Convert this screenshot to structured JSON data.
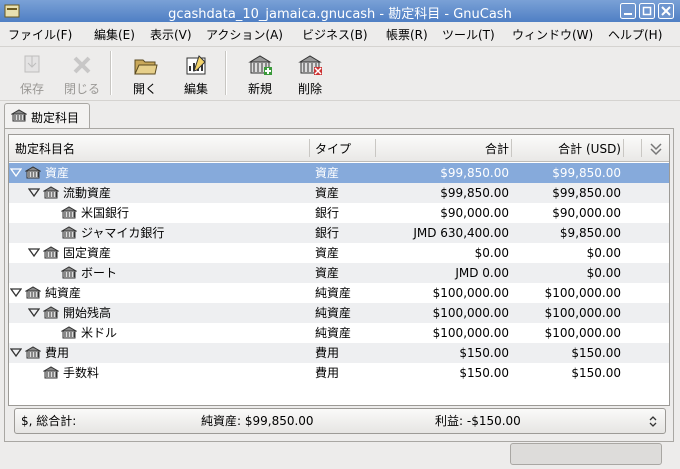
{
  "window": {
    "title": "gcashdata_10_jamaica.gnucash - 勘定科目 - GnuCash"
  },
  "menu": [
    "ファイル(F)",
    "編集(E)",
    "表示(V)",
    "アクション(A)",
    "ビジネス(B)",
    "帳票(R)",
    "ツール(T)",
    "ウィンドウ(W)",
    "ヘルプ(H)"
  ],
  "toolbar": [
    {
      "label": "保存",
      "enabled": false
    },
    {
      "label": "閉じる",
      "enabled": false
    },
    {
      "label": "開く",
      "enabled": true
    },
    {
      "label": "編集",
      "enabled": true
    },
    {
      "label": "新規",
      "enabled": true
    },
    {
      "label": "削除",
      "enabled": true
    }
  ],
  "tab": "勘定科目",
  "columns": [
    "勘定科目名",
    "タイプ",
    "合計",
    "合計 (USD)"
  ],
  "accounts": [
    {
      "name": "資産",
      "type": "資産",
      "total": "$99,850.00",
      "total_usd": "$99,850.00",
      "selected": true,
      "children": [
        {
          "name": "流動資産",
          "type": "資産",
          "total": "$99,850.00",
          "total_usd": "$99,850.00",
          "children": [
            {
              "name": "米国銀行",
              "type": "銀行",
              "total": "$90,000.00",
              "total_usd": "$90,000.00"
            },
            {
              "name": "ジャマイカ銀行",
              "type": "銀行",
              "total": "JMD 630,400.00",
              "total_usd": "$9,850.00"
            }
          ]
        },
        {
          "name": "固定資産",
          "type": "資産",
          "total": "$0.00",
          "total_usd": "$0.00",
          "children": [
            {
              "name": "ボート",
              "type": "資産",
              "total": "JMD 0.00",
              "total_usd": "$0.00"
            }
          ]
        }
      ]
    },
    {
      "name": "純資産",
      "type": "純資産",
      "total": "$100,000.00",
      "total_usd": "$100,000.00",
      "children": [
        {
          "name": "開始残高",
          "type": "純資産",
          "total": "$100,000.00",
          "total_usd": "$100,000.00",
          "children": [
            {
              "name": "米ドル",
              "type": "純資産",
              "total": "$100,000.00",
              "total_usd": "$100,000.00"
            }
          ]
        }
      ]
    },
    {
      "name": "費用",
      "type": "費用",
      "total": "$150.00",
      "total_usd": "$150.00",
      "children": [
        {
          "name": "手数料",
          "type": "費用",
          "total": "$150.00",
          "total_usd": "$150.00"
        }
      ]
    }
  ],
  "summary": {
    "label": "$, 総合計:",
    "net_assets": "純資産: $99,850.00",
    "profit": "利益: -$150.00"
  }
}
